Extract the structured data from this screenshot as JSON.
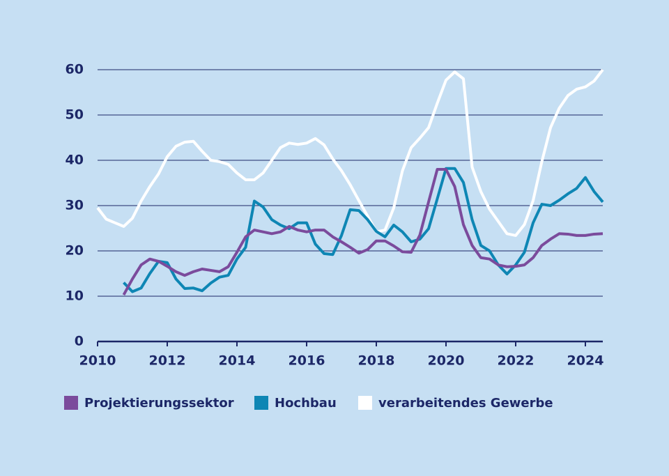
{
  "chart_data": {
    "type": "line",
    "x": [
      2010,
      2010.25,
      2010.5,
      2010.75,
      2011,
      2011.25,
      2011.5,
      2011.75,
      2012,
      2012.25,
      2012.5,
      2012.75,
      2013,
      2013.25,
      2013.5,
      2013.75,
      2014,
      2014.25,
      2014.5,
      2014.75,
      2015,
      2015.25,
      2015.5,
      2015.75,
      2016,
      2016.25,
      2016.5,
      2016.75,
      2017,
      2017.25,
      2017.5,
      2017.75,
      2018,
      2018.25,
      2018.5,
      2018.75,
      2019,
      2019.25,
      2019.5,
      2019.75,
      2020,
      2020.25,
      2020.5,
      2020.75,
      2021,
      2021.25,
      2021.5,
      2021.75,
      2022,
      2022.25,
      2022.5,
      2022.75,
      2023,
      2023.25,
      2023.5,
      2023.75,
      2024,
      2024.25,
      2024.5
    ],
    "series": [
      {
        "name": "Projektierungssektor",
        "color": "#7b4b9c",
        "values": [
          null,
          null,
          null,
          10.3,
          13.8,
          16.9,
          18.2,
          17.7,
          16.6,
          15.4,
          14.6,
          15.4,
          16,
          15.7,
          15.4,
          16.5,
          19.7,
          23.1,
          24.6,
          24.2,
          23.8,
          24.2,
          25.4,
          24.6,
          24.2,
          24.6,
          24.6,
          23.1,
          22,
          20.8,
          19.5,
          20.3,
          22.2,
          22.2,
          21.1,
          19.8,
          19.7,
          23.5,
          30.8,
          38,
          38,
          34.2,
          25.8,
          21.2,
          18.5,
          18.2,
          16.9,
          16.5,
          16.6,
          16.9,
          18.5,
          21.2,
          22.6,
          23.8,
          23.7,
          23.4,
          23.4,
          23.7,
          23.8
        ]
      },
      {
        "name": "Hochbau",
        "color": "#0e86b4",
        "values": [
          null,
          null,
          null,
          13,
          11,
          11.8,
          15,
          17.7,
          17.4,
          13.8,
          11.7,
          11.8,
          11.2,
          12.9,
          14.2,
          14.6,
          18.2,
          20.8,
          31,
          29.7,
          26.9,
          25.7,
          24.9,
          26.2,
          26.2,
          21.5,
          19.4,
          19.2,
          23.4,
          29.1,
          28.9,
          26.9,
          24.3,
          23.1,
          25.7,
          24.2,
          22,
          22.6,
          24.9,
          31.5,
          38.2,
          38.2,
          35.1,
          26.9,
          21.2,
          20,
          16.9,
          14.9,
          16.9,
          19.7,
          26.2,
          30.3,
          30,
          31.2,
          32.6,
          33.8,
          36.2,
          33.1,
          30.8
        ]
      },
      {
        "name": "verarbeitendes Gewerbe",
        "color": "#ffffff",
        "values": [
          29.5,
          27,
          26.2,
          25.4,
          27.2,
          31,
          34.2,
          37,
          40.8,
          43.1,
          44,
          44.2,
          42,
          40,
          39.7,
          39.1,
          37.2,
          35.7,
          35.7,
          37.2,
          40,
          42.8,
          43.8,
          43.5,
          43.8,
          44.8,
          43.4,
          40.3,
          37.7,
          34.6,
          31.1,
          27.7,
          24.2,
          24.6,
          29.5,
          37.7,
          42.8,
          44.9,
          47.2,
          52.6,
          57.7,
          59.5,
          58,
          38.5,
          33.1,
          29.2,
          26.5,
          23.8,
          23.4,
          25.8,
          31.1,
          39.7,
          47.2,
          51.5,
          54.3,
          55.7,
          56.2,
          57.5,
          60
        ]
      }
    ],
    "xlim": [
      2010,
      2024.5
    ],
    "xticks": [
      2010,
      2012,
      2014,
      2016,
      2018,
      2020,
      2022,
      2024
    ],
    "ylim": [
      0,
      60
    ],
    "yticks": [
      0,
      10,
      20,
      30,
      40,
      50,
      60
    ],
    "grid": true,
    "legend": "bottom"
  }
}
